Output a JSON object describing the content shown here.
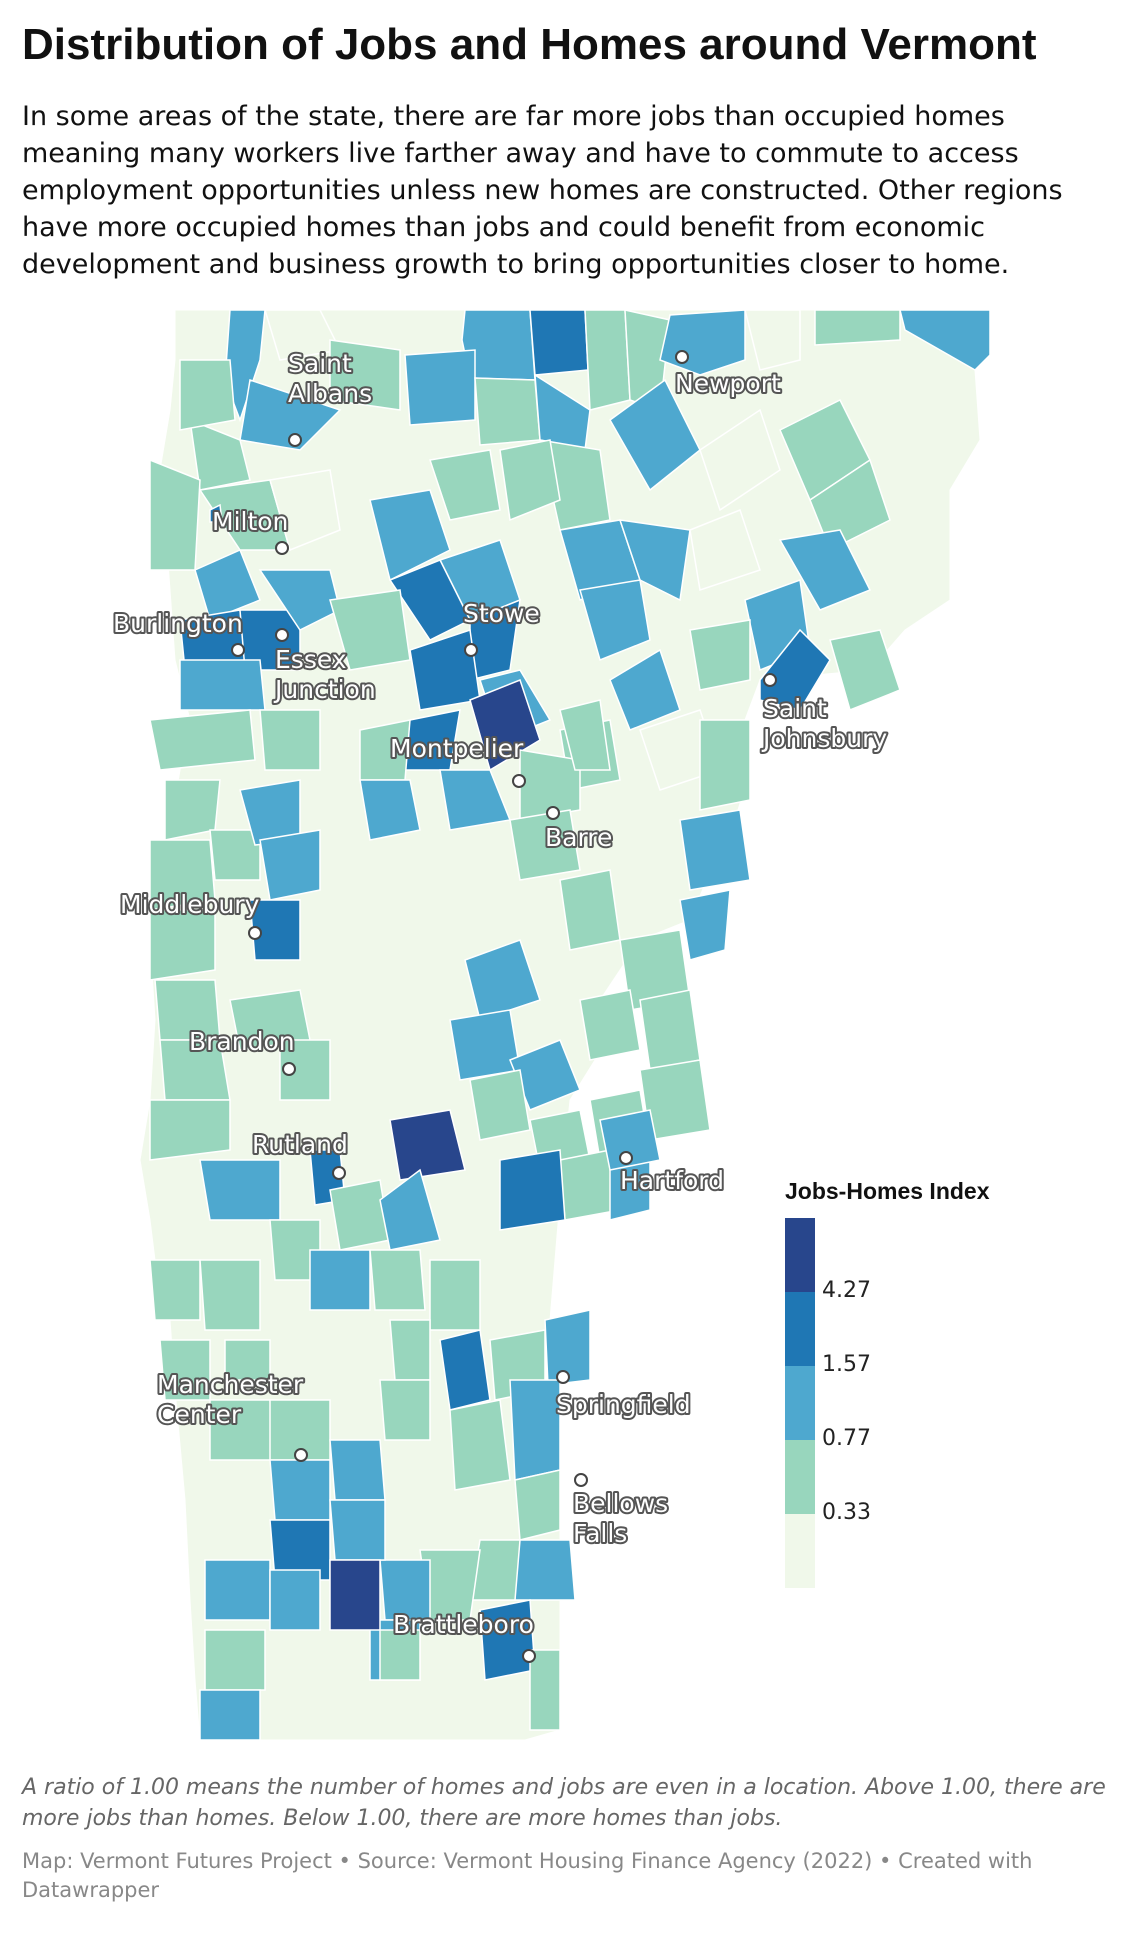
{
  "title": "Distribution of Jobs and Homes around Vermont",
  "description": "In some areas of the state, there are far more jobs than occupied homes meaning many workers live farther away and have to commute to access employment opportunities unless new homes are constructed. Other regions have more occupied homes than jobs and could benefit from economic development and business growth to bring opportunities closer to home.",
  "legend": {
    "title": "Jobs-Homes Index",
    "ticks": [
      "4.27",
      "1.57",
      "0.77",
      "0.33"
    ],
    "colors": [
      "#28468c",
      "#1f77b4",
      "#4ea8cf",
      "#98d6bd",
      "#f0f8ea"
    ]
  },
  "cities": [
    {
      "id": "saint-albans",
      "name": "Saint\nAlbans"
    },
    {
      "id": "milton",
      "name": "Milton"
    },
    {
      "id": "burlington",
      "name": "Burlington"
    },
    {
      "id": "essex-junction",
      "name": "Essex\nJunction"
    },
    {
      "id": "stowe",
      "name": "Stowe"
    },
    {
      "id": "newport",
      "name": "Newport"
    },
    {
      "id": "saint-johnsbury",
      "name": "Saint\nJohnsbury"
    },
    {
      "id": "montpelier",
      "name": "Montpelier"
    },
    {
      "id": "barre",
      "name": "Barre"
    },
    {
      "id": "middlebury",
      "name": "Middlebury"
    },
    {
      "id": "brandon",
      "name": "Brandon"
    },
    {
      "id": "rutland",
      "name": "Rutland"
    },
    {
      "id": "hartford",
      "name": "Hartford"
    },
    {
      "id": "springfield",
      "name": "Springfield"
    },
    {
      "id": "manchester-center",
      "name": "Manchester\nCenter"
    },
    {
      "id": "bellows-falls",
      "name": "Bellows\nFalls"
    },
    {
      "id": "brattleboro",
      "name": "Brattleboro"
    }
  ],
  "note": "A ratio of 1.00 means the number of homes and jobs are even in a location. Above 1.00, there are more jobs than homes. Below 1.00, there are more homes than jobs.",
  "credit": "Map: Vermont Futures Project • Source: Vermont Housing Finance Agency (2022) • Created with Datawrapper"
}
